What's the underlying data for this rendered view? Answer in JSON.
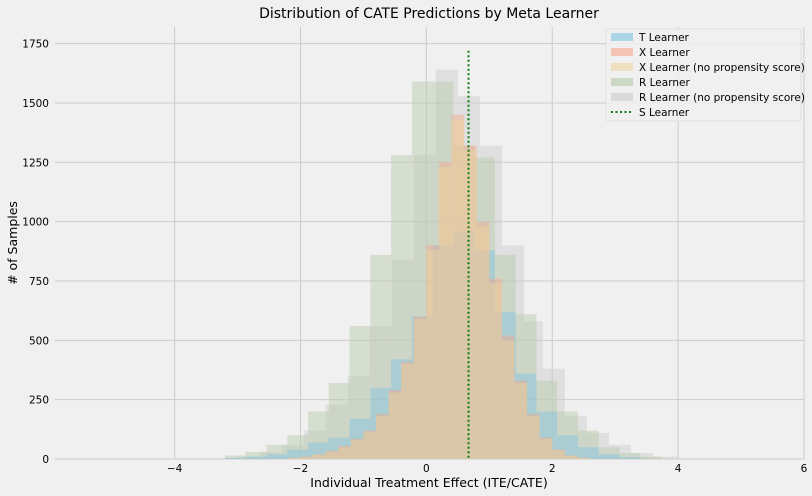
{
  "chart_data": {
    "type": "histogram",
    "title": "Distribution of CATE Predictions by Meta Learner",
    "xlabel": "Individual Treatment Effect (ITE/CATE)",
    "ylabel": "# of Samples",
    "xlim": [
      -5.9,
      6.0
    ],
    "ylim": [
      0,
      1820
    ],
    "x_ticks": [
      -4,
      -2,
      0,
      2,
      4,
      6
    ],
    "x_tick_labels": [
      "−4",
      "−2",
      "0",
      "2",
      "4",
      "6"
    ],
    "y_ticks": [
      0,
      250,
      500,
      750,
      1000,
      1250,
      1500,
      1750
    ],
    "y_tick_labels": [
      "0",
      "250",
      "500",
      "750",
      "1000",
      "1250",
      "1500",
      "1750"
    ],
    "grid": true,
    "legend_position": "top-right",
    "series": [
      {
        "name": "T Learner",
        "color": "#7ec3e0",
        "opacity": 0.45,
        "bin_edges": [
          -3.2,
          -2.87,
          -2.54,
          -2.21,
          -1.88,
          -1.55,
          -1.22,
          -0.89,
          -0.56,
          -0.23,
          0.1,
          0.43,
          0.76,
          1.09,
          1.42,
          1.75,
          2.08,
          2.41,
          2.74,
          3.07,
          3.4
        ],
        "counts": [
          5,
          10,
          20,
          40,
          70,
          90,
          170,
          300,
          420,
          600,
          900,
          960,
          880,
          620,
          360,
          200,
          100,
          50,
          20,
          8
        ]
      },
      {
        "name": "X Learner",
        "color": "#f5a78c",
        "opacity": 0.45,
        "bin_edges": [
          -2.2,
          -2.0,
          -1.8,
          -1.6,
          -1.4,
          -1.2,
          -1.0,
          -0.8,
          -0.6,
          -0.4,
          -0.2,
          0.0,
          0.2,
          0.4,
          0.6,
          0.8,
          1.0,
          1.2,
          1.4,
          1.6,
          1.8,
          2.0,
          2.2,
          2.4,
          2.6
        ],
        "counts": [
          5,
          10,
          20,
          35,
          55,
          85,
          120,
          190,
          290,
          410,
          600,
          900,
          1250,
          1450,
          1320,
          1000,
          760,
          520,
          330,
          190,
          90,
          40,
          15,
          5
        ]
      },
      {
        "name": "X Learner (no propensity score)",
        "color": "#eed6a0",
        "opacity": 0.45,
        "bin_edges": [
          -2.2,
          -2.0,
          -1.8,
          -1.6,
          -1.4,
          -1.2,
          -1.0,
          -0.8,
          -0.6,
          -0.4,
          -0.2,
          0.0,
          0.2,
          0.4,
          0.6,
          0.8,
          1.0,
          1.2,
          1.4,
          1.6,
          1.8,
          2.0,
          2.2,
          2.4,
          2.6
        ],
        "counts": [
          5,
          10,
          18,
          32,
          50,
          80,
          115,
          180,
          280,
          400,
          590,
          880,
          1230,
          1430,
          1300,
          980,
          740,
          500,
          320,
          180,
          85,
          38,
          14,
          5
        ]
      },
      {
        "name": "R Learner",
        "color": "#bccbb0",
        "opacity": 0.5,
        "bin_edges": [
          -3.2,
          -2.87,
          -2.54,
          -2.21,
          -1.88,
          -1.55,
          -1.22,
          -0.89,
          -0.56,
          -0.23,
          0.1,
          0.43,
          0.76,
          1.09,
          1.42,
          1.75,
          2.08,
          2.41,
          2.74,
          3.07,
          3.4,
          3.73
        ],
        "counts": [
          15,
          30,
          60,
          100,
          200,
          320,
          560,
          860,
          1280,
          1590,
          1590,
          1320,
          1270,
          860,
          610,
          330,
          200,
          120,
          50,
          25,
          10
        ]
      },
      {
        "name": "R Learner (no propensity score)",
        "color": "#cdcdcd",
        "opacity": 0.5,
        "bin_edges": [
          -3.0,
          -2.65,
          -2.3,
          -1.95,
          -1.6,
          -1.25,
          -0.9,
          -0.55,
          -0.2,
          0.15,
          0.5,
          0.85,
          1.2,
          1.55,
          1.85,
          2.2,
          2.55,
          2.9,
          3.25,
          3.6,
          4.0,
          4.4
        ],
        "counts": [
          10,
          30,
          60,
          120,
          230,
          350,
          560,
          840,
          1280,
          1640,
          1530,
          1320,
          900,
          580,
          380,
          180,
          110,
          60,
          25,
          10,
          3
        ]
      },
      {
        "name": "S Learner",
        "color": "#0e7a0e",
        "type": "vline",
        "x": 0.67,
        "y_top": 1720
      }
    ]
  }
}
